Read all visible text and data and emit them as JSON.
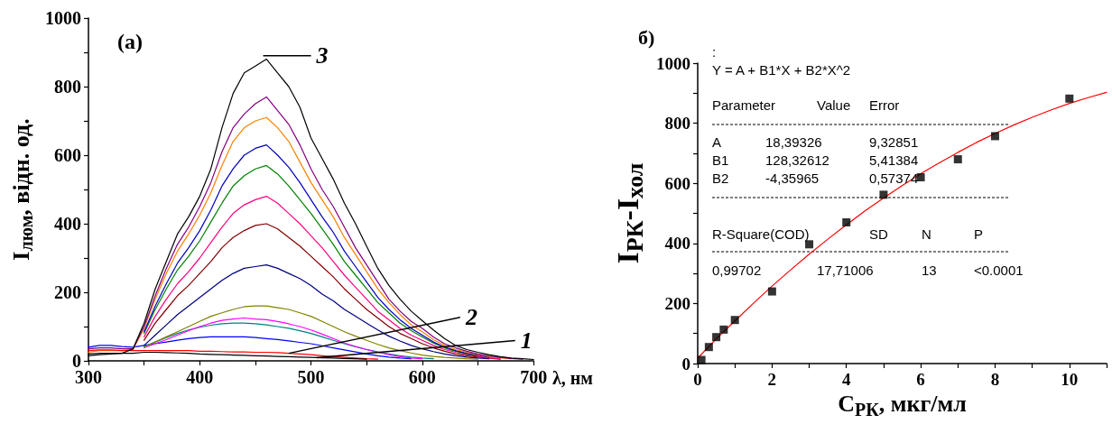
{
  "chart_data": [
    {
      "type": "line",
      "title": "(a)",
      "xlabel": "λ, нм",
      "ylabel": "I$_{люм}$, відн. од.",
      "marker": "none",
      "x": [
        300,
        310,
        320,
        330,
        340,
        350,
        360,
        370,
        380,
        390,
        400,
        410,
        420,
        430,
        440,
        450,
        460,
        470,
        480,
        490,
        500,
        510,
        520,
        530,
        540,
        550,
        560,
        570,
        580,
        590,
        600,
        610,
        620,
        630,
        640,
        650,
        660,
        670,
        680,
        690,
        700
      ],
      "xlim": [
        300,
        700
      ],
      "xticks": [
        300,
        {
          "value": 350,
          "label": null
        },
        400,
        {
          "value": 450,
          "label": null
        },
        500,
        {
          "value": 550,
          "label": null
        },
        600,
        {
          "value": 650,
          "label": null
        },
        700
      ],
      "ylim": [
        0,
        1000
      ],
      "yticks": [
        0,
        {
          "value": 100,
          "label": null
        },
        200,
        {
          "value": 300,
          "label": null
        },
        400,
        {
          "value": 500,
          "label": null
        },
        600,
        {
          "value": 700,
          "label": null
        },
        800,
        {
          "value": 900,
          "label": null
        },
        1000
      ],
      "series": [
        {
          "color": "#0000ff",
          "values": [
            40,
            45,
            45,
            42,
            40,
            45,
            50,
            55,
            60,
            65,
            68,
            70,
            70,
            70,
            70,
            68,
            65,
            62,
            58,
            54,
            50,
            44,
            38,
            32,
            26,
            20,
            15,
            11,
            8,
            6,
            null,
            null,
            null,
            null,
            null,
            null,
            null,
            null,
            null,
            null,
            null
          ]
        },
        {
          "color": "#008080",
          "values": [
            null,
            null,
            null,
            null,
            null,
            42,
            55,
            68,
            80,
            90,
            98,
            104,
            108,
            110,
            110,
            108,
            105,
            100,
            95,
            88,
            80,
            70,
            60,
            50,
            41,
            33,
            26,
            20,
            15,
            11,
            8,
            6,
            null,
            null,
            null,
            null,
            null,
            null,
            null,
            null,
            null
          ]
        },
        {
          "color": "#ff00ff",
          "values": [
            null,
            null,
            null,
            null,
            null,
            38,
            50,
            62,
            75,
            88,
            100,
            110,
            118,
            122,
            125,
            122,
            120,
            115,
            108,
            100,
            90,
            78,
            65,
            52,
            42,
            33,
            25,
            18,
            12,
            8,
            6,
            null,
            null,
            null,
            null,
            null,
            null,
            null,
            null,
            null,
            null
          ]
        },
        {
          "color": "#808000",
          "values": [
            null,
            null,
            null,
            null,
            null,
            40,
            55,
            70,
            85,
            100,
            115,
            130,
            140,
            150,
            158,
            160,
            160,
            155,
            150,
            140,
            130,
            115,
            100,
            85,
            72,
            60,
            48,
            38,
            30,
            23,
            17,
            13,
            10,
            8,
            6,
            5,
            null,
            null,
            null,
            null,
            null
          ]
        },
        {
          "color": "#000080",
          "values": [
            null,
            null,
            null,
            null,
            null,
            45,
            75,
            105,
            135,
            160,
            185,
            210,
            235,
            255,
            270,
            275,
            280,
            270,
            255,
            240,
            220,
            195,
            175,
            150,
            130,
            110,
            90,
            72,
            58,
            45,
            35,
            27,
            20,
            15,
            11,
            8,
            6,
            null,
            null,
            null,
            null
          ]
        },
        {
          "color": "#800000",
          "values": [
            null,
            null,
            null,
            null,
            null,
            60,
            110,
            150,
            190,
            220,
            255,
            290,
            330,
            360,
            380,
            395,
            400,
            385,
            360,
            335,
            305,
            275,
            245,
            210,
            180,
            150,
            125,
            100,
            80,
            65,
            50,
            38,
            28,
            20,
            15,
            11,
            8,
            5,
            null,
            null,
            null
          ]
        },
        {
          "color": "#ff0080",
          "values": [
            null,
            null,
            null,
            null,
            null,
            70,
            130,
            180,
            225,
            260,
            300,
            345,
            390,
            430,
            455,
            470,
            480,
            460,
            430,
            400,
            365,
            330,
            290,
            250,
            215,
            180,
            145,
            120,
            95,
            75,
            60,
            45,
            33,
            25,
            18,
            13,
            9,
            6,
            null,
            null,
            null
          ]
        },
        {
          "color": "#008000",
          "values": [
            null,
            null,
            null,
            null,
            null,
            80,
            150,
            210,
            265,
            305,
            350,
            405,
            460,
            510,
            540,
            560,
            570,
            545,
            510,
            470,
            430,
            385,
            340,
            290,
            250,
            210,
            170,
            140,
            110,
            88,
            70,
            52,
            38,
            28,
            20,
            15,
            null,
            null,
            null,
            null,
            null
          ]
        },
        {
          "color": "#0000c0",
          "values": [
            null,
            null,
            null,
            null,
            null,
            85,
            160,
            225,
            285,
            330,
            380,
            440,
            510,
            560,
            600,
            620,
            630,
            600,
            565,
            520,
            470,
            420,
            375,
            320,
            275,
            230,
            185,
            150,
            120,
            95,
            75,
            55,
            40,
            30,
            22,
            16,
            11,
            null,
            null,
            null,
            null
          ]
        },
        {
          "color": "#ff8000",
          "values": [
            25,
            30,
            30,
            30,
            33,
            95,
            180,
            255,
            320,
            370,
            425,
            490,
            570,
            640,
            680,
            700,
            710,
            680,
            640,
            580,
            520,
            470,
            420,
            360,
            310,
            260,
            210,
            170,
            135,
            105,
            85,
            62,
            45,
            33,
            25,
            18,
            12,
            9,
            6,
            null,
            null
          ]
        },
        {
          "color": "#800080",
          "values": [
            35,
            38,
            38,
            35,
            35,
            100,
            190,
            270,
            340,
            390,
            450,
            520,
            610,
            680,
            720,
            750,
            770,
            730,
            690,
            630,
            560,
            500,
            450,
            390,
            330,
            280,
            230,
            180,
            145,
            115,
            95,
            70,
            50,
            38,
            28,
            20,
            14,
            10,
            7,
            5,
            null
          ]
        },
        {
          "color": "#ff0000",
          "values": [
            30,
            32,
            32,
            30,
            30,
            30,
            30,
            30,
            30,
            30,
            28,
            28,
            27,
            26,
            26,
            25,
            25,
            24,
            22,
            20,
            18,
            15,
            12,
            10,
            8,
            6,
            5,
            null,
            null,
            null,
            null,
            null,
            null,
            null,
            null,
            null,
            null,
            null,
            null,
            null,
            null
          ]
        },
        {
          "color": "#000000",
          "values": [
            20,
            22,
            22,
            22,
            22,
            25,
            25,
            24,
            23,
            22,
            20,
            19,
            18,
            17,
            16,
            15,
            14,
            13,
            12,
            11,
            10,
            9,
            8,
            7,
            6,
            5,
            null,
            null,
            null,
            null,
            null,
            null,
            null,
            null,
            null,
            null,
            null,
            null,
            null,
            null,
            null
          ]
        },
        {
          "color": "#000000",
          "values": [
            15,
            18,
            20,
            22,
            35,
            110,
            210,
            290,
            370,
            420,
            480,
            560,
            680,
            780,
            840,
            860,
            880,
            840,
            800,
            740,
            650,
            590,
            530,
            460,
            400,
            334,
            270,
            220,
            180,
            145,
            117,
            90,
            65,
            45,
            33,
            25,
            18,
            12,
            8,
            6,
            4
          ]
        }
      ],
      "annotations": [
        {
          "text": "3",
          "x": 457,
          "y": 890
        },
        {
          "text": "2",
          "x": 480,
          "y": 22
        },
        {
          "text": "1",
          "x": 505,
          "y": 9
        }
      ]
    },
    {
      "type": "scatter",
      "title": "б)",
      "xlabel": "C$_{РК}$, мкг/мл",
      "ylabel": "I$_{РК}$-I$_{хол}$",
      "xlim": [
        0,
        11
      ],
      "xticks": [
        0,
        {
          "value": 1,
          "label": null
        },
        2,
        {
          "value": 3,
          "label": null
        },
        4,
        {
          "value": 5,
          "label": null
        },
        6,
        {
          "value": 7,
          "label": null
        },
        8,
        {
          "value": 9,
          "label": null
        },
        10,
        {
          "value": 11,
          "label": null
        }
      ],
      "ylim": [
        0,
        1000
      ],
      "yticks": [
        0,
        {
          "value": 100,
          "label": null
        },
        200,
        {
          "value": 300,
          "label": null
        },
        400,
        {
          "value": 500,
          "label": null
        },
        600,
        {
          "value": 700,
          "label": null
        },
        800,
        {
          "value": 900,
          "label": null
        },
        1000
      ],
      "series": [
        {
          "marker": "square",
          "color": "#000000",
          "x": [
            0.1,
            0.3,
            0.5,
            0.7,
            1,
            2,
            3,
            4,
            5,
            6,
            7,
            8,
            10
          ],
          "values": [
            12,
            55,
            88,
            113,
            145,
            240,
            397,
            470,
            562,
            620,
            680,
            757,
            882
          ]
        },
        {
          "type": "line",
          "marker": "none",
          "color": "#ff0000",
          "x": [
            0,
            0.5,
            1,
            1.5,
            2,
            2.5,
            3,
            3.5,
            4,
            4.5,
            5,
            5.5,
            6,
            6.5,
            7,
            7.5,
            8,
            8.5,
            9,
            9.5,
            10,
            10.5,
            11
          ],
          "values": [
            18,
            82,
            142,
            201,
            258,
            312,
            364,
            414,
            462,
            508,
            551,
            592,
            632,
            668,
            703,
            736,
            766,
            794,
            820,
            844,
            866,
            885,
            903
          ]
        }
      ],
      "annotations": [
        ":",
        "Y = A + B1*X + B2*X^2",
        "Parameter",
        "Value",
        "Error",
        "A",
        "18,39326",
        "9,32851",
        "B1",
        "128,32612",
        "5,41384",
        "B2",
        "-4,35965",
        "0,57374",
        "R-Square(COD)",
        "SD",
        "N",
        "P",
        "0,99702",
        "17,71006",
        "13",
        "<0.0001"
      ]
    }
  ]
}
